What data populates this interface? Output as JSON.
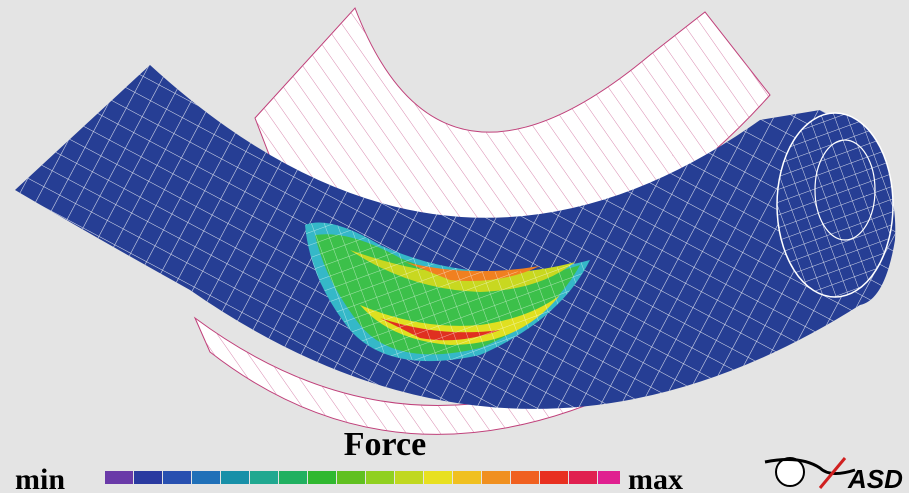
{
  "legend": {
    "title": "Force",
    "min": "min",
    "max": "max"
  },
  "logo": {
    "text": "ASD"
  }
}
